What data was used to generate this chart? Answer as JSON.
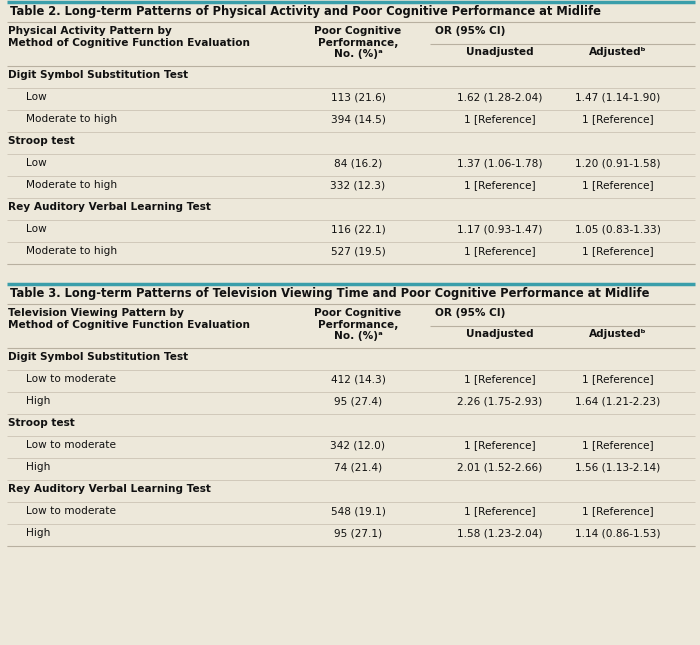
{
  "table2_title": "Table 2. Long-term Patterns of Physical Activity and Poor Cognitive Performance at Midlife",
  "table3_title": "Table 3. Long-term Patterns of Television Viewing Time and Poor Cognitive Performance at Midlife",
  "col_header_col1": "Physical Activity Pattern by\nMethod of Cognitive Function Evaluation",
  "col_header_col1_t3": "Television Viewing Pattern by\nMethod of Cognitive Function Evaluation",
  "col_header_col2": "Poor Cognitive\nPerformance,\nNo. (%)ᵃ",
  "col_header_col3": "OR (95% CI)",
  "col_header_col3a": "Unadjusted",
  "col_header_col3b": "Adjustedᵇ",
  "table2_rows": [
    {
      "type": "section",
      "col1": "Digit Symbol Substitution Test",
      "col2": "",
      "col3a": "",
      "col3b": ""
    },
    {
      "type": "data",
      "col1": "Low",
      "col2": "113 (21.6)",
      "col3a": "1.62 (1.28-2.04)",
      "col3b": "1.47 (1.14-1.90)"
    },
    {
      "type": "data",
      "col1": "Moderate to high",
      "col2": "394 (14.5)",
      "col3a": "1 [Reference]",
      "col3b": "1 [Reference]"
    },
    {
      "type": "section",
      "col1": "Stroop test",
      "col2": "",
      "col3a": "",
      "col3b": ""
    },
    {
      "type": "data",
      "col1": "Low",
      "col2": "84 (16.2)",
      "col3a": "1.37 (1.06-1.78)",
      "col3b": "1.20 (0.91-1.58)"
    },
    {
      "type": "data",
      "col1": "Moderate to high",
      "col2": "332 (12.3)",
      "col3a": "1 [Reference]",
      "col3b": "1 [Reference]"
    },
    {
      "type": "section",
      "col1": "Rey Auditory Verbal Learning Test",
      "col2": "",
      "col3a": "",
      "col3b": ""
    },
    {
      "type": "data",
      "col1": "Low",
      "col2": "116 (22.1)",
      "col3a": "1.17 (0.93-1.47)",
      "col3b": "1.05 (0.83-1.33)"
    },
    {
      "type": "data",
      "col1": "Moderate to high",
      "col2": "527 (19.5)",
      "col3a": "1 [Reference]",
      "col3b": "1 [Reference]"
    }
  ],
  "table3_rows": [
    {
      "type": "section",
      "col1": "Digit Symbol Substitution Test",
      "col2": "",
      "col3a": "",
      "col3b": ""
    },
    {
      "type": "data",
      "col1": "Low to moderate",
      "col2": "412 (14.3)",
      "col3a": "1 [Reference]",
      "col3b": "1 [Reference]"
    },
    {
      "type": "data",
      "col1": "High",
      "col2": "95 (27.4)",
      "col3a": "2.26 (1.75-2.93)",
      "col3b": "1.64 (1.21-2.23)"
    },
    {
      "type": "section",
      "col1": "Stroop test",
      "col2": "",
      "col3a": "",
      "col3b": ""
    },
    {
      "type": "data",
      "col1": "Low to moderate",
      "col2": "342 (12.0)",
      "col3a": "1 [Reference]",
      "col3b": "1 [Reference]"
    },
    {
      "type": "data",
      "col1": "High",
      "col2": "74 (21.4)",
      "col3a": "2.01 (1.52-2.66)",
      "col3b": "1.56 (1.13-2.14)"
    },
    {
      "type": "section",
      "col1": "Rey Auditory Verbal Learning Test",
      "col2": "",
      "col3a": "",
      "col3b": ""
    },
    {
      "type": "data",
      "col1": "Low to moderate",
      "col2": "548 (19.1)",
      "col3a": "1 [Reference]",
      "col3b": "1 [Reference]"
    },
    {
      "type": "data",
      "col1": "High",
      "col2": "95 (27.1)",
      "col3a": "1.58 (1.23-2.04)",
      "col3b": "1.14 (0.86-1.53)"
    }
  ],
  "bg_color": "#ede8da",
  "teal_color": "#3a9eaa",
  "thin_line_color": "#b8b0a0",
  "inner_line_color": "#ccc4b4",
  "title_color": "#111111",
  "section_color": "#111111",
  "data_color": "#111111",
  "fig_width": 7.0,
  "fig_height": 6.45,
  "dpi": 100
}
